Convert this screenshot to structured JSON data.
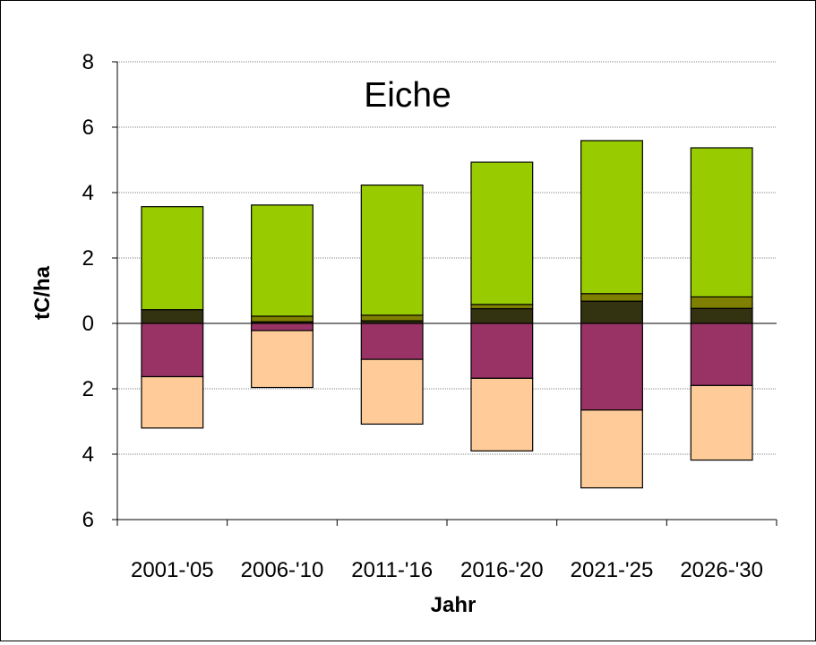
{
  "chart_data": {
    "type": "bar",
    "stacked": true,
    "title": "Eiche",
    "xlabel": "Jahr",
    "ylabel": "tC/ha",
    "ylim": [
      -6,
      8
    ],
    "yticks": [
      8,
      6,
      4,
      2,
      0,
      -2,
      -4,
      -6
    ],
    "ytick_labels": [
      "8",
      "6",
      "4",
      "2",
      "0",
      "2",
      "4",
      "6"
    ],
    "categories": [
      "2001-'05",
      "2006-'10",
      "2011-'16",
      "2016-'20",
      "2021-'25",
      "2026-'30"
    ],
    "grid": true,
    "legend": "none",
    "series": [
      {
        "color": "#333311",
        "values": [
          0.42,
          0.05,
          0.08,
          0.45,
          0.68,
          0.46
        ]
      },
      {
        "color": "#808000",
        "values": [
          0.0,
          0.17,
          0.17,
          0.13,
          0.23,
          0.35
        ]
      },
      {
        "color": "#99CC00",
        "values": [
          3.15,
          3.4,
          3.98,
          4.35,
          4.68,
          4.56
        ]
      },
      {
        "color": "#993366",
        "values": [
          -1.63,
          -0.22,
          -1.1,
          -1.68,
          -2.65,
          -1.9
        ]
      },
      {
        "color": "#FFCC99",
        "values": [
          -1.57,
          -1.74,
          -1.98,
          -2.22,
          -2.38,
          -2.28
        ]
      }
    ]
  }
}
